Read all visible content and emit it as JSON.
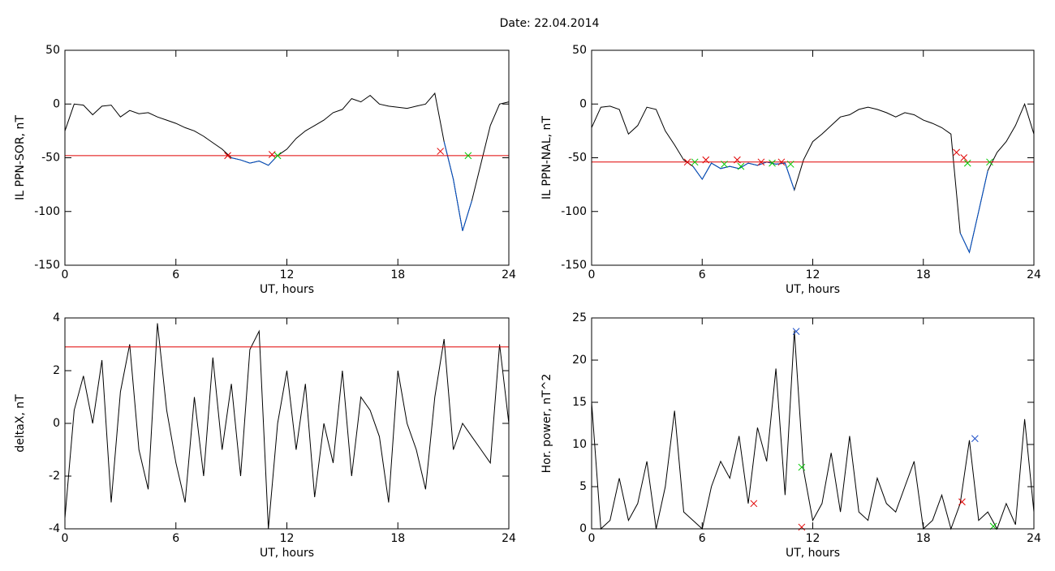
{
  "title": "Date:  22.04.2014",
  "chart_data": [
    {
      "type": "line",
      "xlabel": "UT, hours",
      "ylabel": "IL PPN-SOR, nT",
      "xlim": [
        0,
        24
      ],
      "xticks": [
        0,
        6,
        12,
        18,
        24
      ],
      "ylim": [
        -150,
        50
      ],
      "yticks": [
        -150,
        -100,
        -50,
        0,
        50
      ],
      "x": [
        0,
        0.5,
        1,
        1.5,
        2,
        2.5,
        3,
        3.5,
        4,
        4.5,
        5,
        5.5,
        6,
        6.5,
        7,
        7.5,
        8,
        8.5,
        9,
        9.5,
        10,
        10.5,
        11,
        11.5,
        12,
        12.5,
        13,
        13.5,
        14,
        14.5,
        15,
        15.5,
        16,
        16.5,
        17,
        17.5,
        18,
        18.5,
        19,
        19.5,
        20,
        20.5,
        21,
        21.5,
        22,
        22.5,
        23,
        23.5,
        24
      ],
      "series": [
        {
          "color": "#000000",
          "values": [
            -25,
            0,
            -1,
            -10,
            -2,
            -1,
            -12,
            -6,
            -9,
            -8,
            -12,
            -15,
            -18,
            -22,
            -25,
            -30,
            -36,
            -42,
            -50,
            -52,
            -55,
            -53,
            -57,
            -48,
            -42,
            -32,
            -25,
            -20,
            -15,
            -8,
            -5,
            5,
            2,
            8,
            0,
            -2,
            -3,
            -4,
            -2,
            0,
            10,
            -35,
            -70,
            -118,
            -90,
            -55,
            -20,
            0,
            2
          ]
        },
        {
          "color": "#0050c8",
          "values": [
            null,
            null,
            null,
            null,
            null,
            null,
            null,
            null,
            null,
            null,
            null,
            null,
            null,
            null,
            null,
            null,
            null,
            null,
            -50,
            -52,
            -55,
            -53,
            -57,
            -48,
            null,
            null,
            null,
            null,
            null,
            null,
            null,
            null,
            null,
            null,
            null,
            null,
            null,
            null,
            null,
            null,
            null,
            -35,
            -70,
            -118,
            -90,
            null,
            null,
            null,
            null
          ]
        }
      ],
      "hlines": [
        {
          "value": -48,
          "color": "#e00000"
        }
      ],
      "markers": [
        {
          "color": "#e00000",
          "x": [
            8.8,
            11.2,
            20.3
          ],
          "y": [
            -48,
            -47,
            -44
          ]
        },
        {
          "color": "#00c800",
          "x": [
            11.5,
            21.8
          ],
          "y": [
            -48,
            -48
          ]
        }
      ]
    },
    {
      "type": "line",
      "xlabel": "UT, hours",
      "ylabel": "IL PPN-NAL, nT",
      "xlim": [
        0,
        24
      ],
      "xticks": [
        0,
        6,
        12,
        18,
        24
      ],
      "ylim": [
        -150,
        50
      ],
      "yticks": [
        -150,
        -100,
        -50,
        0,
        50
      ],
      "x": [
        0,
        0.5,
        1,
        1.5,
        2,
        2.5,
        3,
        3.5,
        4,
        4.5,
        5,
        5.5,
        6,
        6.5,
        7,
        7.5,
        8,
        8.5,
        9,
        9.5,
        10,
        10.5,
        11,
        11.5,
        12,
        12.5,
        13,
        13.5,
        14,
        14.5,
        15,
        15.5,
        16,
        16.5,
        17,
        17.5,
        18,
        18.5,
        19,
        19.5,
        20,
        20.5,
        21,
        21.5,
        22,
        22.5,
        23,
        23.5,
        24
      ],
      "series": [
        {
          "color": "#000000",
          "values": [
            -22,
            -3,
            -2,
            -5,
            -28,
            -20,
            -3,
            -5,
            -25,
            -38,
            -52,
            -58,
            -70,
            -55,
            -60,
            -58,
            -60,
            -55,
            -57,
            -54,
            -56,
            -55,
            -80,
            -52,
            -35,
            -28,
            -20,
            -12,
            -10,
            -5,
            -3,
            -5,
            -8,
            -12,
            -8,
            -10,
            -15,
            -18,
            -22,
            -28,
            -120,
            -138,
            -100,
            -62,
            -45,
            -35,
            -20,
            0,
            -28
          ]
        },
        {
          "color": "#0050c8",
          "values": [
            null,
            null,
            null,
            null,
            null,
            null,
            null,
            null,
            null,
            null,
            null,
            -58,
            -70,
            -55,
            -60,
            -58,
            -60,
            -55,
            -57,
            -54,
            -56,
            -55,
            -80,
            null,
            null,
            null,
            null,
            null,
            null,
            null,
            null,
            null,
            null,
            null,
            null,
            null,
            null,
            null,
            null,
            null,
            -120,
            -138,
            -100,
            -62,
            null,
            null,
            null,
            null,
            null
          ]
        }
      ],
      "hlines": [
        {
          "value": -54,
          "color": "#e00000"
        }
      ],
      "markers": [
        {
          "color": "#e00000",
          "x": [
            5.2,
            6.2,
            7.9,
            9.2,
            10.3,
            19.8,
            20.2
          ],
          "y": [
            -54,
            -52,
            -52,
            -54,
            -54,
            -45,
            -50
          ]
        },
        {
          "color": "#00c800",
          "x": [
            5.6,
            7.2,
            8.1,
            9.8,
            10.8,
            20.4,
            21.6
          ],
          "y": [
            -54,
            -56,
            -58,
            -55,
            -56,
            -55,
            -54
          ]
        }
      ]
    },
    {
      "type": "line",
      "xlabel": "UT, hours",
      "ylabel": "deltaX, nT",
      "xlim": [
        0,
        24
      ],
      "xticks": [
        0,
        6,
        12,
        18,
        24
      ],
      "ylim": [
        -4,
        4
      ],
      "yticks": [
        -4,
        -2,
        0,
        2,
        4
      ],
      "x": [
        0,
        0.5,
        1,
        1.5,
        2,
        2.5,
        3,
        3.5,
        4,
        4.5,
        5,
        5.5,
        6,
        6.5,
        7,
        7.5,
        8,
        8.5,
        9,
        9.5,
        10,
        10.5,
        11,
        11.5,
        12,
        12.5,
        13,
        13.5,
        14,
        14.5,
        15,
        15.5,
        16,
        16.5,
        17,
        17.5,
        18,
        18.5,
        19,
        19.5,
        20,
        20.5,
        21,
        21.5,
        22,
        22.5,
        23,
        23.5,
        24
      ],
      "series": [
        {
          "color": "#000000",
          "values": [
            -3.6,
            0.5,
            1.8,
            0,
            2.4,
            -3,
            1.2,
            3,
            -1,
            -2.5,
            3.8,
            0.5,
            -1.5,
            -3,
            1,
            -2,
            2.5,
            -1,
            1.5,
            -2,
            2.8,
            3.5,
            -4,
            0,
            2,
            -1,
            1.5,
            -2.8,
            0,
            -1.5,
            2,
            -2,
            1,
            0.5,
            -0.5,
            -3,
            2,
            0,
            -1,
            -2.5,
            1,
            3.2,
            -1,
            0,
            -0.5,
            -1,
            -1.5,
            3,
            0
          ]
        }
      ],
      "hlines": [
        {
          "value": 2.9,
          "color": "#e00000"
        }
      ],
      "markers": []
    },
    {
      "type": "line",
      "xlabel": "UT, hours",
      "ylabel": "Hor. power, nT^2",
      "xlim": [
        0,
        24
      ],
      "xticks": [
        0,
        6,
        12,
        18,
        24
      ],
      "ylim": [
        0,
        25
      ],
      "yticks": [
        0,
        5,
        10,
        15,
        20,
        25
      ],
      "x": [
        0,
        0.5,
        1,
        1.5,
        2,
        2.5,
        3,
        3.5,
        4,
        4.5,
        5,
        5.5,
        6,
        6.5,
        7,
        7.5,
        8,
        8.5,
        9,
        9.5,
        10,
        10.5,
        11,
        11.5,
        12,
        12.5,
        13,
        13.5,
        14,
        14.5,
        15,
        15.5,
        16,
        16.5,
        17,
        17.5,
        18,
        18.5,
        19,
        19.5,
        20,
        20.5,
        21,
        21.5,
        22,
        22.5,
        23,
        23.5,
        24
      ],
      "series": [
        {
          "color": "#000000",
          "values": [
            15,
            0,
            1,
            6,
            1,
            3,
            8,
            0,
            5,
            14,
            2,
            1,
            0,
            5,
            8,
            6,
            11,
            3,
            12,
            8,
            19,
            4,
            23.5,
            7,
            1,
            3,
            9,
            2,
            11,
            2,
            1,
            6,
            3,
            2,
            5,
            8,
            0,
            1,
            4,
            0,
            3,
            10.5,
            1,
            2,
            0,
            3,
            0.5,
            13,
            2
          ]
        }
      ],
      "hlines": [
        {
          "value": 25,
          "color": "#e00000"
        }
      ],
      "markers": [
        {
          "color": "#1e50c8",
          "x": [
            11.1,
            20.8
          ],
          "y": [
            23.4,
            10.7
          ]
        },
        {
          "color": "#00c800",
          "x": [
            11.4,
            21.8
          ],
          "y": [
            7.3,
            0.3
          ]
        },
        {
          "color": "#e00000",
          "x": [
            8.8,
            20.1,
            11.4
          ],
          "y": [
            3,
            3.2,
            0.2
          ]
        }
      ]
    }
  ]
}
